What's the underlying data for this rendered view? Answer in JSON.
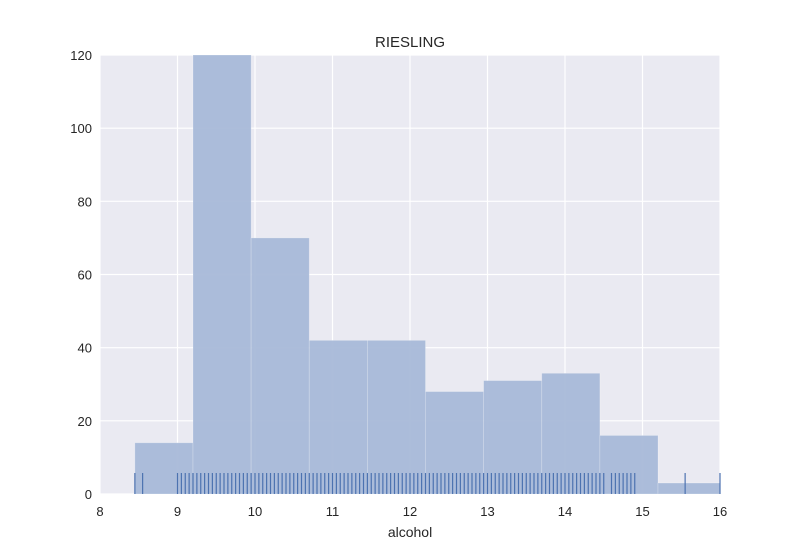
{
  "chart_data": {
    "type": "bar",
    "subtype": "histogram-with-rug",
    "title": "RIESLING",
    "xlabel": "alcohol",
    "ylabel": "",
    "xlim": [
      8,
      16
    ],
    "ylim": [
      0,
      120
    ],
    "xticks": [
      "8",
      "9",
      "10",
      "11",
      "12",
      "13",
      "14",
      "15",
      "16"
    ],
    "yticks": [
      "0",
      "20",
      "40",
      "60",
      "80",
      "100",
      "120"
    ],
    "grid": true,
    "background_color": "#eaeaf2",
    "bar_color": "#a8b9d8",
    "rug_color": "#4c72b0",
    "bins": [
      {
        "x0": 8.45,
        "x1": 9.2,
        "count": 14
      },
      {
        "x0": 9.2,
        "x1": 9.95,
        "count": 120
      },
      {
        "x0": 9.95,
        "x1": 10.7,
        "count": 70
      },
      {
        "x0": 10.7,
        "x1": 11.45,
        "count": 42
      },
      {
        "x0": 11.45,
        "x1": 12.2,
        "count": 42
      },
      {
        "x0": 12.2,
        "x1": 12.95,
        "count": 28
      },
      {
        "x0": 12.95,
        "x1": 13.7,
        "count": 31
      },
      {
        "x0": 13.7,
        "x1": 14.45,
        "count": 33
      },
      {
        "x0": 14.45,
        "x1": 15.2,
        "count": 16
      },
      {
        "x0": 15.2,
        "x1": 16.0,
        "count": 3
      }
    ],
    "rug_values": [
      8.45,
      8.55,
      9.0,
      9.05,
      9.1,
      9.15,
      9.2,
      9.25,
      9.3,
      9.35,
      9.4,
      9.45,
      9.5,
      9.55,
      9.6,
      9.65,
      9.7,
      9.75,
      9.8,
      9.85,
      9.9,
      9.95,
      10.0,
      10.05,
      10.1,
      10.15,
      10.2,
      10.25,
      10.3,
      10.35,
      10.4,
      10.45,
      10.5,
      10.55,
      10.6,
      10.65,
      10.7,
      10.75,
      10.8,
      10.85,
      10.9,
      10.95,
      11.0,
      11.05,
      11.1,
      11.15,
      11.2,
      11.25,
      11.3,
      11.35,
      11.4,
      11.45,
      11.5,
      11.55,
      11.6,
      11.65,
      11.7,
      11.75,
      11.8,
      11.85,
      11.9,
      11.95,
      12.0,
      12.05,
      12.1,
      12.15,
      12.2,
      12.25,
      12.3,
      12.35,
      12.4,
      12.45,
      12.5,
      12.55,
      12.6,
      12.65,
      12.7,
      12.75,
      12.8,
      12.85,
      12.9,
      12.95,
      13.0,
      13.05,
      13.1,
      13.15,
      13.2,
      13.25,
      13.3,
      13.35,
      13.4,
      13.45,
      13.5,
      13.55,
      13.6,
      13.65,
      13.7,
      13.75,
      13.8,
      13.85,
      13.9,
      13.95,
      14.0,
      14.05,
      14.1,
      14.15,
      14.2,
      14.25,
      14.3,
      14.35,
      14.4,
      14.45,
      14.5,
      14.6,
      14.65,
      14.7,
      14.75,
      14.8,
      14.85,
      14.9,
      15.55,
      16.0
    ]
  }
}
